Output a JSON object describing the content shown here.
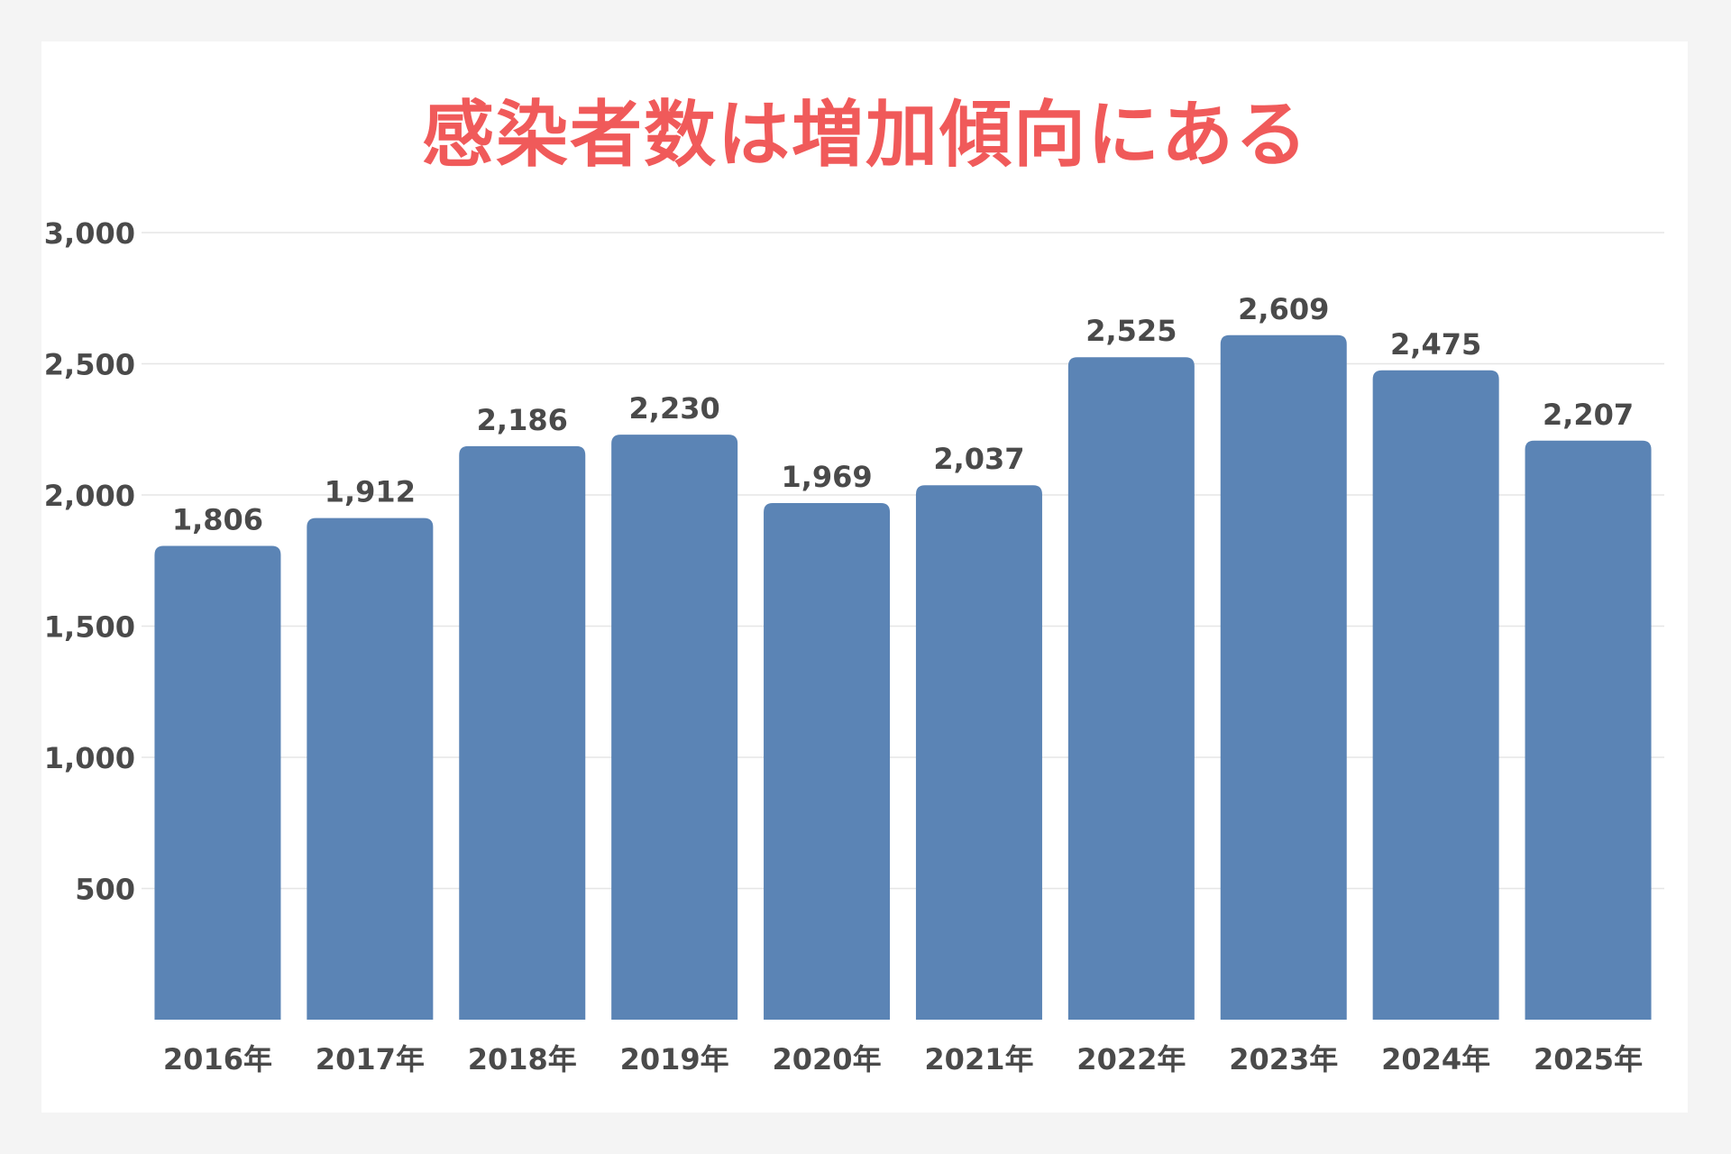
{
  "colors": {
    "background": "#f4f4f4",
    "panel": "#ffffff",
    "title": "#f05a5a",
    "bar": "#5b84b5",
    "text": "#4a4a4a",
    "grid": "#e6e6e6"
  },
  "chart_data": {
    "type": "bar",
    "title": "感染者数は増加傾向にある",
    "xlabel": "",
    "ylabel": "",
    "categories": [
      "2016年",
      "2017年",
      "2018年",
      "2019年",
      "2020年",
      "2021年",
      "2022年",
      "2023年",
      "2024年",
      "2025年"
    ],
    "values": [
      1806,
      1912,
      2186,
      2230,
      1969,
      2037,
      2525,
      2609,
      2475,
      2207
    ],
    "data_labels": [
      "1,806",
      "1,912",
      "2,186",
      "2,230",
      "1,969",
      "2,037",
      "2,525",
      "2,609",
      "2,475",
      "2,207"
    ],
    "yticks": [
      500,
      1000,
      1500,
      2000,
      2500,
      3000
    ],
    "ytick_labels": [
      "500",
      "1,000",
      "1,500",
      "2,000",
      "2,500",
      "3,000"
    ],
    "ylim": [
      0,
      3000
    ],
    "grid": true,
    "legend": "none"
  }
}
